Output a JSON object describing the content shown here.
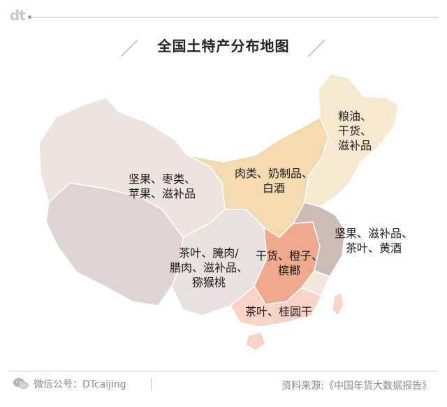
{
  "header": {
    "logo_text": "dt",
    "title": "全国土特产分布地图"
  },
  "regions": {
    "northeast": "粮油、\n干货、\n滋补品",
    "northwest": "坚果、枣类、\n苹果、滋补品",
    "north": "肉类、奶制品、\n白酒",
    "east": "坚果、滋补品、\n茶叶、黄酒",
    "southwest": "茶叶、腌肉/\n腊肉、滋补品、\n猕猴桃",
    "central": "干货、橙子、\n槟榔",
    "south": "茶叶、桂圆干"
  },
  "colors": {
    "northeast": "#f8e8d0",
    "north": "#f2d9ae",
    "northwest": "#ede3e0",
    "west": "#ddd4d3",
    "southwest": "#e9e1df",
    "east": "#cbbab6",
    "central": "#f0a98a",
    "south": "#f8d2c4",
    "lightcentral": "#f5e6da"
  },
  "footer": {
    "wechat_label": "微信公号：DTcaijing",
    "source": "资料来源:《中国年货大数据报告》"
  }
}
